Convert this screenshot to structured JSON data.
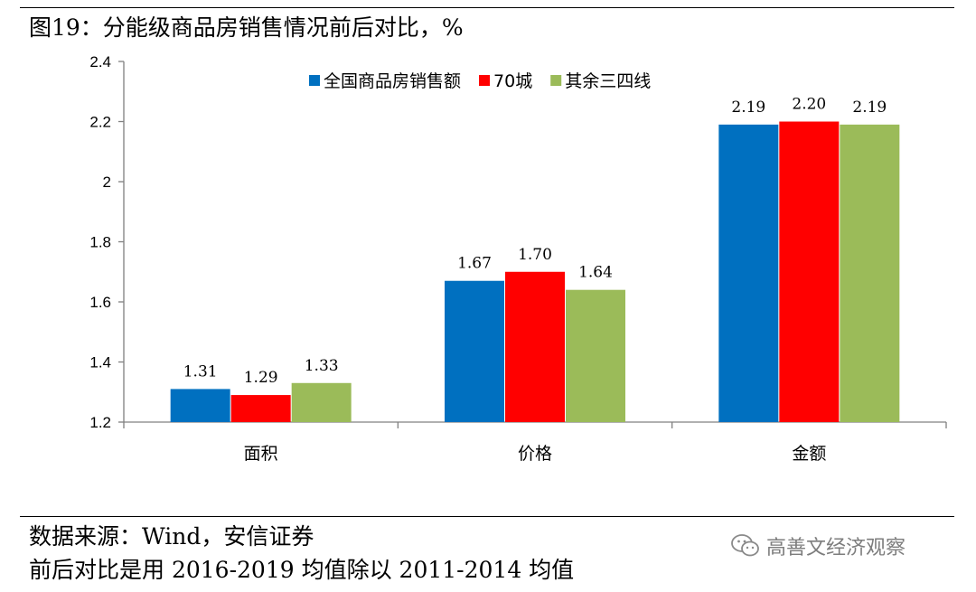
{
  "header": {
    "title": "图19：分能级商品房销售情况前后对比，%"
  },
  "footer": {
    "source": "数据来源：Wind，安信证券",
    "note": "前后对比是用 2016-2019 均值除以 2011-2014 均值",
    "watermark": "高善文经济观察",
    "watermark_icon": "wechat-icon"
  },
  "chart_data": {
    "type": "bar",
    "title": "分能级商品房销售情况前后对比，%",
    "categories": [
      "面积",
      "价格",
      "金额"
    ],
    "series": [
      {
        "name": "全国商品房销售额",
        "color": "#0070C0",
        "values": [
          1.31,
          1.67,
          2.19
        ],
        "labels": [
          "1.31",
          "1.67",
          "2.19"
        ]
      },
      {
        "name": "70城",
        "color": "#FF0000",
        "values": [
          1.29,
          1.7,
          2.2
        ],
        "labels": [
          "1.29",
          "1.70",
          "2.20"
        ]
      },
      {
        "name": "其余三四线",
        "color": "#9BBB59",
        "values": [
          1.33,
          1.64,
          2.19
        ],
        "labels": [
          "1.33",
          "1.64",
          "2.19"
        ]
      }
    ],
    "ylim": [
      1.2,
      2.4
    ],
    "yticks": [
      "1.2",
      "1.4",
      "1.6",
      "1.8",
      "2",
      "2.2",
      "2.4"
    ],
    "grid": false,
    "legend_position": "top-center",
    "xlabel": "",
    "ylabel": ""
  }
}
